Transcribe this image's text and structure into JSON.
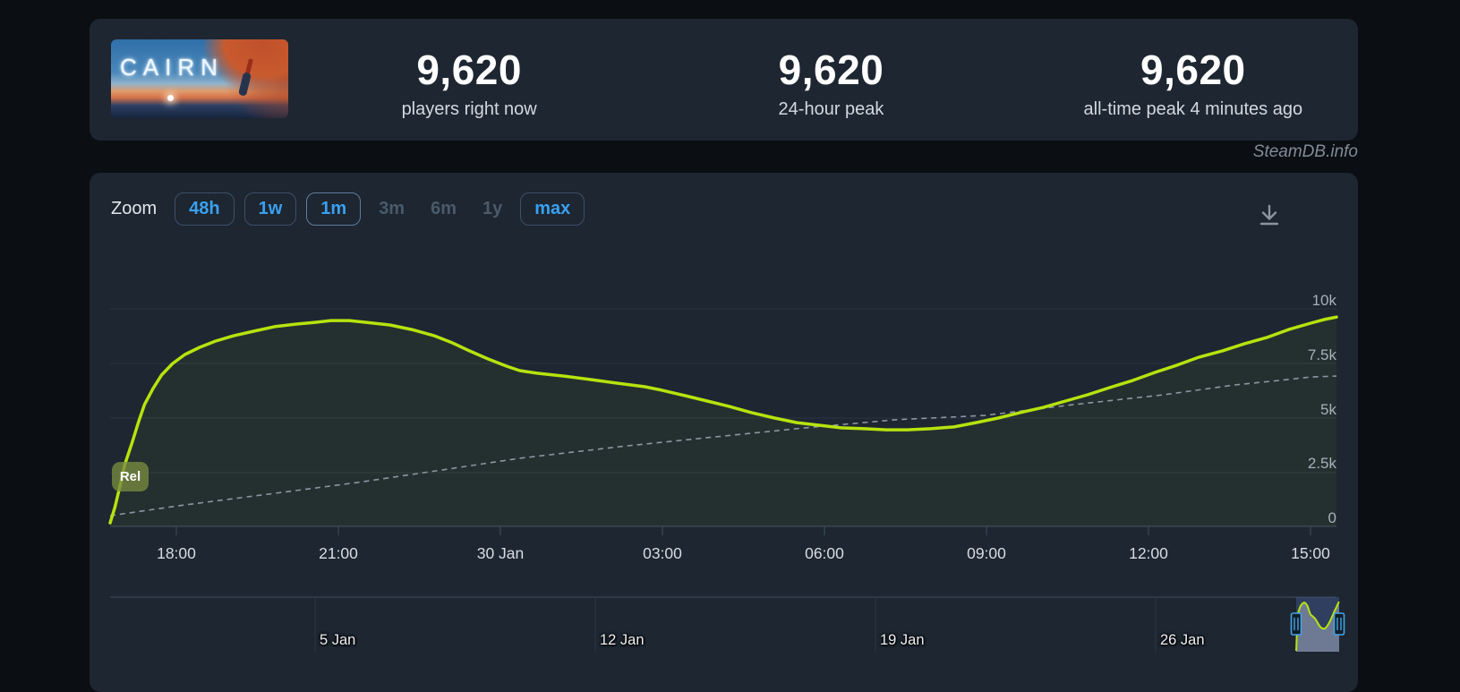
{
  "header": {
    "game_title": "CAIRN",
    "stats": [
      {
        "value": "9,620",
        "label": "players right now"
      },
      {
        "value": "9,620",
        "label": "24-hour peak"
      },
      {
        "value": "9,620",
        "label": "all-time peak 4 minutes ago"
      }
    ]
  },
  "watermark": "SteamDB.info",
  "toolbar": {
    "zoom_label": "Zoom",
    "buttons": [
      {
        "label": "48h",
        "state": "normal"
      },
      {
        "label": "1w",
        "state": "normal"
      },
      {
        "label": "1m",
        "state": "selected"
      },
      {
        "label": "3m",
        "state": "disabled"
      },
      {
        "label": "6m",
        "state": "disabled"
      },
      {
        "label": "1y",
        "state": "disabled"
      },
      {
        "label": "max",
        "state": "normal"
      }
    ],
    "download_icon": "download-icon"
  },
  "colors": {
    "line_green": "#b6e30e",
    "trend_gray": "#8b97a2",
    "accent_blue": "#3aa0f0",
    "grid": "#2a3644",
    "axis": "#41505f",
    "selection_fill": "rgba(77,98,160,0.42)",
    "handle_blue": "#41a5e6"
  },
  "chart_data": {
    "type": "line",
    "title": "",
    "xlabel": "",
    "ylabel": "",
    "ylim": [
      0,
      10000
    ],
    "grid": true,
    "y_ticks": [
      {
        "label": "10k",
        "value": 10000
      },
      {
        "label": "7.5k",
        "value": 7500
      },
      {
        "label": "5k",
        "value": 5000
      },
      {
        "label": "2.5k",
        "value": 2500
      },
      {
        "label": "0",
        "value": 0
      }
    ],
    "x_ticks": [
      "18:00",
      "21:00",
      "30 Jan",
      "03:00",
      "06:00",
      "09:00",
      "12:00",
      "15:00"
    ],
    "release_marker": "Rel",
    "series": [
      {
        "name": "players",
        "style": "solid",
        "points": [
          [
            0.0,
            160
          ],
          [
            0.004,
            900
          ],
          [
            0.008,
            1850
          ],
          [
            0.012,
            2840
          ],
          [
            0.018,
            3870
          ],
          [
            0.023,
            4770
          ],
          [
            0.028,
            5600
          ],
          [
            0.035,
            6340
          ],
          [
            0.042,
            6960
          ],
          [
            0.051,
            7490
          ],
          [
            0.061,
            7900
          ],
          [
            0.073,
            8230
          ],
          [
            0.086,
            8520
          ],
          [
            0.101,
            8770
          ],
          [
            0.117,
            8970
          ],
          [
            0.134,
            9180
          ],
          [
            0.152,
            9300
          ],
          [
            0.167,
            9380
          ],
          [
            0.18,
            9460
          ],
          [
            0.195,
            9460
          ],
          [
            0.209,
            9380
          ],
          [
            0.228,
            9260
          ],
          [
            0.246,
            9050
          ],
          [
            0.264,
            8770
          ],
          [
            0.279,
            8440
          ],
          [
            0.293,
            8070
          ],
          [
            0.308,
            7700
          ],
          [
            0.323,
            7370
          ],
          [
            0.334,
            7160
          ],
          [
            0.348,
            7040
          ],
          [
            0.37,
            6910
          ],
          [
            0.392,
            6750
          ],
          [
            0.414,
            6580
          ],
          [
            0.436,
            6420
          ],
          [
            0.45,
            6260
          ],
          [
            0.469,
            6010
          ],
          [
            0.487,
            5760
          ],
          [
            0.505,
            5510
          ],
          [
            0.523,
            5230
          ],
          [
            0.542,
            4980
          ],
          [
            0.56,
            4770
          ],
          [
            0.578,
            4650
          ],
          [
            0.596,
            4530
          ],
          [
            0.615,
            4490
          ],
          [
            0.633,
            4440
          ],
          [
            0.651,
            4440
          ],
          [
            0.669,
            4490
          ],
          [
            0.688,
            4570
          ],
          [
            0.706,
            4770
          ],
          [
            0.724,
            4980
          ],
          [
            0.742,
            5230
          ],
          [
            0.761,
            5470
          ],
          [
            0.779,
            5760
          ],
          [
            0.797,
            6050
          ],
          [
            0.815,
            6380
          ],
          [
            0.834,
            6710
          ],
          [
            0.852,
            7080
          ],
          [
            0.87,
            7410
          ],
          [
            0.888,
            7780
          ],
          [
            0.907,
            8070
          ],
          [
            0.925,
            8400
          ],
          [
            0.943,
            8680
          ],
          [
            0.961,
            9050
          ],
          [
            0.979,
            9340
          ],
          [
            0.99,
            9510
          ],
          [
            1.0,
            9620
          ]
        ]
      },
      {
        "name": "trend",
        "style": "dashed",
        "points": [
          [
            0.0,
            490
          ],
          [
            0.056,
            950
          ],
          [
            0.129,
            1480
          ],
          [
            0.202,
            2020
          ],
          [
            0.275,
            2630
          ],
          [
            0.334,
            3130
          ],
          [
            0.421,
            3700
          ],
          [
            0.494,
            4120
          ],
          [
            0.567,
            4530
          ],
          [
            0.64,
            4900
          ],
          [
            0.713,
            5100
          ],
          [
            0.786,
            5600
          ],
          [
            0.859,
            6050
          ],
          [
            0.917,
            6500
          ],
          [
            0.954,
            6710
          ],
          [
            0.979,
            6870
          ],
          [
            1.0,
            6910
          ]
        ]
      }
    ],
    "navigator": {
      "x_ticks": [
        "5 Jan",
        "12 Jan",
        "19 Jan",
        "26 Jan"
      ]
    }
  }
}
